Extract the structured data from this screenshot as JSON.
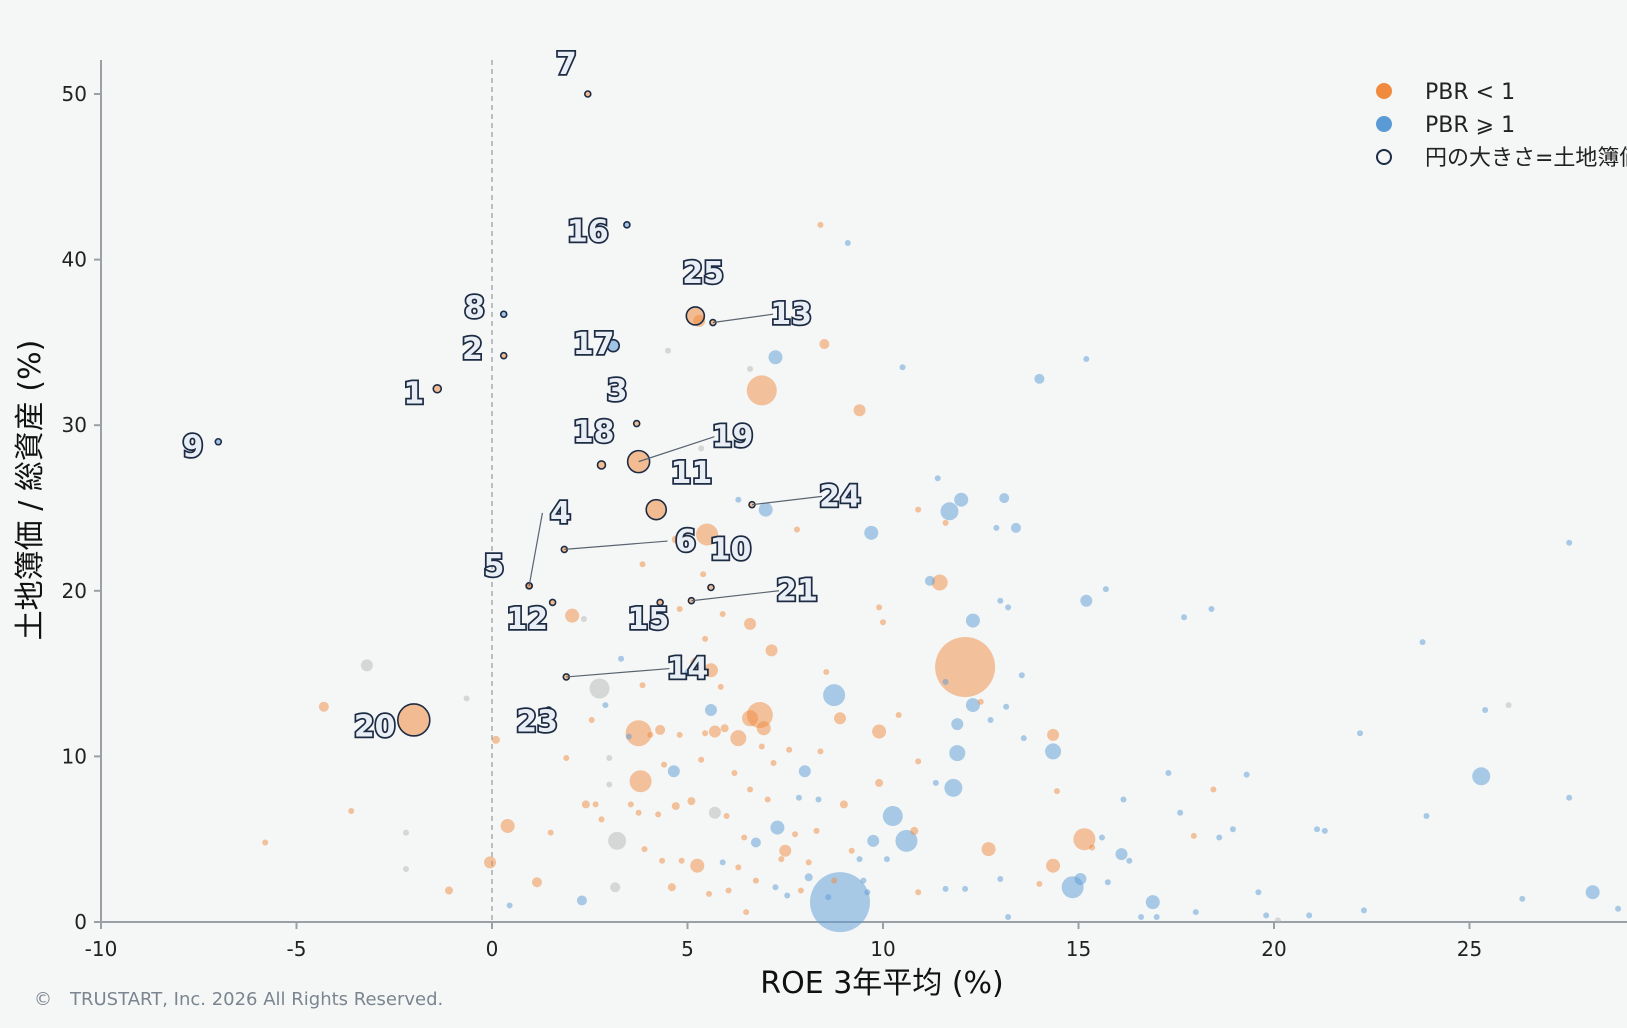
{
  "chart_data": {
    "type": "scatter",
    "title": "",
    "xlabel": "ROE 3年平均 (%)",
    "ylabel": "土地簿価 / 総資産 (%)",
    "xlim": [
      -10,
      29
    ],
    "ylim": [
      0,
      52
    ],
    "xticks": [
      -10,
      -5,
      0,
      5,
      10,
      15,
      20,
      25
    ],
    "yticks": [
      0,
      10,
      20,
      30,
      40,
      50
    ],
    "reference_line": {
      "x": 0,
      "style": "dashed"
    },
    "legend_position": "top-right",
    "colors": {
      "pbr_lt_1": "#f08a3e",
      "pbr_ge_1": "#5b9bd5",
      "outline": "#1d2c45",
      "grey": "#b5b5b5"
    },
    "legend": [
      {
        "label": "PBR < 1",
        "marker": "filled",
        "color": "#f08a3e"
      },
      {
        "label": "PBR ⩾ 1",
        "marker": "filled",
        "color": "#5b9bd5"
      },
      {
        "label": "円の大きさ=土地簿価",
        "marker": "hollow",
        "color": "#1d2c45"
      }
    ],
    "highlighted": [
      {
        "label": "1",
        "x": -1.4,
        "y": 32.2,
        "size": 4,
        "group": "orange",
        "label_dx": -0.6,
        "label_dy": -0.9
      },
      {
        "label": "2",
        "x": 0.3,
        "y": 34.2,
        "size": 3,
        "group": "orange",
        "label_dx": -0.8,
        "label_dy": -0.2
      },
      {
        "label": "3",
        "x": 3.7,
        "y": 30.1,
        "size": 3,
        "group": "orange",
        "label_dx": -0.5,
        "label_dy": 1.4
      },
      {
        "label": "4",
        "x": 0.95,
        "y": 20.3,
        "size": 3,
        "group": "orange",
        "label_dx": 0.8,
        "label_dy": 3.8
      },
      {
        "label": "5",
        "x": 0.95,
        "y": 20.3,
        "size": 3,
        "group": "orange",
        "label_dx": -0.9,
        "label_dy": 0.6
      },
      {
        "label": "6",
        "x": 1.85,
        "y": 22.5,
        "size": 3,
        "group": "orange",
        "label_dx": 3.1,
        "label_dy": -0.1
      },
      {
        "label": "7",
        "x": 2.45,
        "y": 50.0,
        "size": 3,
        "group": "orange",
        "label_dx": -0.55,
        "label_dy": 1.2
      },
      {
        "label": "8",
        "x": 0.3,
        "y": 36.7,
        "size": 3,
        "group": "blue",
        "label_dx": -0.75,
        "label_dy": -0.2
      },
      {
        "label": "9",
        "x": -7.0,
        "y": 29.0,
        "size": 3,
        "group": "blue",
        "label_dx": -0.65,
        "label_dy": -0.9
      },
      {
        "label": "10",
        "x": 5.6,
        "y": 20.2,
        "size": 3,
        "group": "orange",
        "label_dx": 0.5,
        "label_dy": 1.7
      },
      {
        "label": "11",
        "x": 4.2,
        "y": 24.9,
        "size": 10,
        "group": "orange",
        "label_dx": 0.9,
        "label_dy": 1.6
      },
      {
        "label": "12",
        "x": 1.55,
        "y": 19.3,
        "size": 3,
        "group": "orange",
        "label_dx": -0.65,
        "label_dy": -1.6
      },
      {
        "label": "13",
        "x": 5.65,
        "y": 36.2,
        "size": 3,
        "group": "orange",
        "label_dx": 2.0,
        "label_dy": -0.1
      },
      {
        "label": "14",
        "x": 1.9,
        "y": 14.8,
        "size": 3,
        "group": "orange",
        "label_dx": 3.1,
        "label_dy": -0.1
      },
      {
        "label": "15",
        "x": 4.3,
        "y": 19.3,
        "size": 3,
        "group": "orange",
        "label_dx": -0.3,
        "label_dy": -1.6
      },
      {
        "label": "16",
        "x": 3.45,
        "y": 42.1,
        "size": 3,
        "group": "blue",
        "label_dx": -1.0,
        "label_dy": -1.0
      },
      {
        "label": "17",
        "x": 3.1,
        "y": 34.8,
        "size": 6,
        "group": "blue",
        "label_dx": -0.5,
        "label_dy": -0.5
      },
      {
        "label": "18",
        "x": 2.8,
        "y": 27.6,
        "size": 4,
        "group": "orange",
        "label_dx": -0.2,
        "label_dy": 1.4
      },
      {
        "label": "19",
        "x": 3.75,
        "y": 27.8,
        "size": 11,
        "group": "orange",
        "label_dx": 2.4,
        "label_dy": 0.9
      },
      {
        "label": "20",
        "x": -2.0,
        "y": 12.2,
        "size": 16,
        "group": "orange",
        "label_dx": -1.0,
        "label_dy": -1.0
      },
      {
        "label": "21",
        "x": 5.1,
        "y": 19.4,
        "size": 3,
        "group": "orange",
        "label_dx": 2.7,
        "label_dy": 0.0
      },
      {
        "label": "23",
        "x": 1.45,
        "y": 12.8,
        "size": 3,
        "group": "grey",
        "label_dx": -0.3,
        "label_dy": -1.3
      },
      {
        "label": "24",
        "x": 6.65,
        "y": 25.2,
        "size": 3,
        "group": "orange",
        "label_dx": 2.25,
        "label_dy": -0.1
      },
      {
        "label": "25",
        "x": 5.2,
        "y": 36.6,
        "size": 9,
        "group": "orange",
        "label_dx": 0.2,
        "label_dy": 2.0
      }
    ],
    "background_points": [
      [
        8.4,
        42.1,
        3,
        "o"
      ],
      [
        9.1,
        41.0,
        3,
        "b"
      ],
      [
        5.3,
        36.3,
        6,
        "o"
      ],
      [
        8.5,
        34.9,
        5,
        "o"
      ],
      [
        7.25,
        34.1,
        7,
        "b"
      ],
      [
        4.5,
        34.5,
        3,
        "g"
      ],
      [
        6.6,
        33.4,
        3,
        "g"
      ],
      [
        10.5,
        33.5,
        3,
        "b"
      ],
      [
        14.0,
        32.8,
        5,
        "b"
      ],
      [
        15.2,
        34.0,
        3,
        "b"
      ],
      [
        6.9,
        32.1,
        15,
        "o"
      ],
      [
        9.4,
        30.9,
        6,
        "o"
      ],
      [
        5.35,
        28.6,
        3,
        "g"
      ],
      [
        11.4,
        26.8,
        3,
        "b"
      ],
      [
        11.7,
        24.8,
        9,
        "b"
      ],
      [
        12.0,
        25.5,
        7,
        "b"
      ],
      [
        10.9,
        24.9,
        3,
        "o"
      ],
      [
        7.0,
        24.9,
        7,
        "b"
      ],
      [
        6.3,
        25.5,
        3,
        "b"
      ],
      [
        13.1,
        25.6,
        5,
        "b"
      ],
      [
        13.4,
        23.8,
        5,
        "b"
      ],
      [
        9.7,
        23.5,
        7,
        "b"
      ],
      [
        5.5,
        23.4,
        11,
        "o"
      ],
      [
        7.8,
        23.7,
        3,
        "o"
      ],
      [
        4.7,
        23.1,
        4,
        "o"
      ],
      [
        11.6,
        24.1,
        3,
        "o"
      ],
      [
        12.9,
        23.8,
        3,
        "b"
      ],
      [
        11.45,
        20.5,
        8,
        "o"
      ],
      [
        11.2,
        20.6,
        5,
        "b"
      ],
      [
        13.0,
        19.4,
        3,
        "b"
      ],
      [
        13.2,
        19.0,
        3,
        "b"
      ],
      [
        15.2,
        19.4,
        6,
        "b"
      ],
      [
        15.7,
        20.1,
        3,
        "b"
      ],
      [
        17.7,
        18.4,
        3,
        "b"
      ],
      [
        18.4,
        18.9,
        3,
        "b"
      ],
      [
        12.3,
        18.2,
        7,
        "b"
      ],
      [
        9.9,
        19.0,
        3,
        "o"
      ],
      [
        10.0,
        18.1,
        3,
        "o"
      ],
      [
        6.6,
        18.0,
        6,
        "o"
      ],
      [
        4.8,
        18.9,
        3,
        "o"
      ],
      [
        5.9,
        18.6,
        3,
        "o"
      ],
      [
        2.05,
        18.5,
        7,
        "o"
      ],
      [
        2.35,
        18.3,
        3,
        "g"
      ],
      [
        3.85,
        21.6,
        3,
        "o"
      ],
      [
        5.4,
        21.0,
        3,
        "o"
      ],
      [
        12.1,
        15.4,
        30,
        "o"
      ],
      [
        8.75,
        13.7,
        11,
        "b"
      ],
      [
        7.15,
        16.4,
        6,
        "o"
      ],
      [
        6.85,
        12.5,
        13,
        "o"
      ],
      [
        6.6,
        12.3,
        8,
        "o"
      ],
      [
        6.95,
        11.7,
        7,
        "o"
      ],
      [
        6.3,
        11.1,
        8,
        "o"
      ],
      [
        5.95,
        11.7,
        4,
        "o"
      ],
      [
        5.7,
        11.5,
        6,
        "o"
      ],
      [
        5.45,
        11.4,
        3,
        "o"
      ],
      [
        5.25,
        15.6,
        7,
        "o"
      ],
      [
        5.6,
        15.2,
        7,
        "o"
      ],
      [
        5.0,
        15.1,
        3,
        "b"
      ],
      [
        5.45,
        17.1,
        3,
        "o"
      ],
      [
        3.75,
        11.4,
        13,
        "o"
      ],
      [
        3.8,
        8.5,
        11,
        "o"
      ],
      [
        2.75,
        14.1,
        10,
        "g"
      ],
      [
        3.2,
        4.9,
        9,
        "g"
      ],
      [
        3.15,
        2.1,
        5,
        "g"
      ],
      [
        2.65,
        7.1,
        3,
        "o"
      ],
      [
        4.3,
        11.6,
        5,
        "o"
      ],
      [
        4.8,
        11.3,
        3,
        "o"
      ],
      [
        4.65,
        9.1,
        6,
        "b"
      ],
      [
        5.7,
        6.6,
        6,
        "g"
      ],
      [
        6.75,
        4.8,
        5,
        "b"
      ],
      [
        7.3,
        5.7,
        7,
        "b"
      ],
      [
        7.5,
        4.3,
        6,
        "o"
      ],
      [
        9.2,
        4.3,
        3,
        "o"
      ],
      [
        9.75,
        4.9,
        6,
        "b"
      ],
      [
        10.25,
        6.4,
        10,
        "b"
      ],
      [
        10.6,
        4.9,
        11,
        "b"
      ],
      [
        10.8,
        5.5,
        4,
        "o"
      ],
      [
        11.35,
        8.4,
        3,
        "b"
      ],
      [
        11.8,
        8.1,
        9,
        "b"
      ],
      [
        11.6,
        14.5,
        3,
        "b"
      ],
      [
        12.3,
        13.1,
        7,
        "b"
      ],
      [
        11.9,
        11.95,
        6,
        "b"
      ],
      [
        11.9,
        10.2,
        8,
        "b"
      ],
      [
        12.5,
        13.3,
        3,
        "o"
      ],
      [
        12.75,
        12.2,
        3,
        "b"
      ],
      [
        13.15,
        13.0,
        3,
        "b"
      ],
      [
        13.55,
        14.9,
        3,
        "b"
      ],
      [
        13.6,
        11.1,
        3,
        "b"
      ],
      [
        14.35,
        11.3,
        6,
        "o"
      ],
      [
        14.35,
        10.3,
        8,
        "b"
      ],
      [
        14.45,
        7.9,
        3,
        "o"
      ],
      [
        15.15,
        5.0,
        11,
        "o"
      ],
      [
        15.35,
        4.5,
        3,
        "o"
      ],
      [
        15.6,
        5.1,
        3,
        "b"
      ],
      [
        16.1,
        4.1,
        6,
        "b"
      ],
      [
        16.15,
        7.4,
        3,
        "b"
      ],
      [
        16.3,
        3.7,
        3,
        "b"
      ],
      [
        14.85,
        2.1,
        11,
        "b"
      ],
      [
        15.05,
        2.6,
        6,
        "b"
      ],
      [
        15.75,
        2.4,
        3,
        "b"
      ],
      [
        14.35,
        3.4,
        7,
        "o"
      ],
      [
        14.0,
        2.3,
        3,
        "o"
      ],
      [
        16.9,
        1.2,
        7,
        "b"
      ],
      [
        17.3,
        9.0,
        3,
        "b"
      ],
      [
        17.6,
        6.6,
        3,
        "b"
      ],
      [
        17.95,
        5.2,
        3,
        "o"
      ],
      [
        18.0,
        0.6,
        3,
        "b"
      ],
      [
        18.45,
        8.0,
        3,
        "o"
      ],
      [
        18.6,
        5.1,
        3,
        "b"
      ],
      [
        18.95,
        5.6,
        3,
        "b"
      ],
      [
        19.3,
        8.9,
        3,
        "b"
      ],
      [
        19.6,
        1.8,
        3,
        "b"
      ],
      [
        19.8,
        0.4,
        3,
        "b"
      ],
      [
        20.1,
        0.1,
        3,
        "g"
      ],
      [
        20.9,
        0.4,
        3,
        "b"
      ],
      [
        21.1,
        5.6,
        3,
        "b"
      ],
      [
        21.3,
        5.5,
        3,
        "b"
      ],
      [
        22.2,
        11.4,
        3,
        "b"
      ],
      [
        22.3,
        0.7,
        3,
        "b"
      ],
      [
        23.8,
        16.9,
        3,
        "b"
      ],
      [
        23.9,
        6.4,
        3,
        "b"
      ],
      [
        25.3,
        8.8,
        9,
        "b"
      ],
      [
        25.4,
        12.8,
        3,
        "b"
      ],
      [
        26.0,
        13.1,
        3,
        "g"
      ],
      [
        26.35,
        1.4,
        3,
        "b"
      ],
      [
        27.55,
        22.9,
        3,
        "b"
      ],
      [
        27.55,
        7.5,
        3,
        "b"
      ],
      [
        28.15,
        1.8,
        7,
        "b"
      ],
      [
        28.8,
        0.8,
        3,
        "b"
      ],
      [
        8.9,
        1.2,
        30,
        "b"
      ],
      [
        8.75,
        2.5,
        3,
        "o"
      ],
      [
        9.5,
        2.5,
        3,
        "b"
      ],
      [
        9.0,
        7.1,
        4,
        "o"
      ],
      [
        9.9,
        8.4,
        4,
        "o"
      ],
      [
        9.9,
        11.5,
        7,
        "o"
      ],
      [
        8.9,
        12.3,
        6,
        "o"
      ],
      [
        10.4,
        12.5,
        3,
        "o"
      ],
      [
        10.9,
        9.7,
        3,
        "o"
      ],
      [
        10.1,
        3.8,
        3,
        "b"
      ],
      [
        10.9,
        1.8,
        3,
        "o"
      ],
      [
        11.6,
        2.0,
        3,
        "b"
      ],
      [
        12.1,
        2.0,
        3,
        "b"
      ],
      [
        12.7,
        4.4,
        7,
        "o"
      ],
      [
        13.0,
        2.6,
        3,
        "b"
      ],
      [
        13.2,
        0.3,
        3,
        "b"
      ],
      [
        16.6,
        0.3,
        3,
        "b"
      ],
      [
        17.0,
        0.3,
        3,
        "b"
      ],
      [
        -3.2,
        15.5,
        6,
        "g"
      ],
      [
        -4.3,
        13.0,
        5,
        "o"
      ],
      [
        -3.6,
        6.7,
        3,
        "o"
      ],
      [
        -5.8,
        4.8,
        3,
        "o"
      ],
      [
        -2.2,
        5.4,
        3,
        "g"
      ],
      [
        -2.2,
        3.2,
        3,
        "g"
      ],
      [
        -1.1,
        1.9,
        4,
        "o"
      ],
      [
        -0.65,
        13.5,
        3,
        "g"
      ],
      [
        0.1,
        11.0,
        4,
        "o"
      ],
      [
        0.4,
        5.8,
        7,
        "o"
      ],
      [
        -0.05,
        3.6,
        6,
        "o"
      ],
      [
        0.45,
        1.0,
        3,
        "b"
      ],
      [
        1.15,
        2.4,
        5,
        "o"
      ],
      [
        1.5,
        5.4,
        3,
        "o"
      ],
      [
        1.9,
        9.9,
        3,
        "o"
      ],
      [
        2.3,
        1.3,
        5,
        "b"
      ],
      [
        2.4,
        7.1,
        4,
        "o"
      ],
      [
        2.55,
        12.2,
        3,
        "o"
      ],
      [
        2.8,
        6.2,
        3,
        "o"
      ],
      [
        2.9,
        13.1,
        3,
        "b"
      ],
      [
        3.0,
        9.9,
        3,
        "g"
      ],
      [
        3.0,
        8.3,
        3,
        "g"
      ],
      [
        3.3,
        15.9,
        3,
        "b"
      ],
      [
        3.5,
        11.2,
        3,
        "b"
      ],
      [
        3.55,
        7.1,
        3,
        "o"
      ],
      [
        3.75,
        6.6,
        3,
        "o"
      ],
      [
        3.85,
        14.3,
        3,
        "o"
      ],
      [
        3.9,
        4.4,
        3,
        "o"
      ],
      [
        4.05,
        11.3,
        3,
        "o"
      ],
      [
        4.25,
        6.5,
        3,
        "o"
      ],
      [
        4.35,
        3.7,
        3,
        "o"
      ],
      [
        4.4,
        9.5,
        3,
        "o"
      ],
      [
        4.6,
        2.1,
        4,
        "o"
      ],
      [
        4.7,
        7.0,
        4,
        "o"
      ],
      [
        4.85,
        3.7,
        3,
        "o"
      ],
      [
        5.1,
        7.3,
        4,
        "o"
      ],
      [
        5.35,
        9.8,
        3,
        "o"
      ],
      [
        5.6,
        12.8,
        6,
        "b"
      ],
      [
        5.85,
        14.2,
        3,
        "o"
      ],
      [
        6.0,
        6.4,
        3,
        "o"
      ],
      [
        6.2,
        9.0,
        3,
        "o"
      ],
      [
        6.3,
        3.3,
        3,
        "o"
      ],
      [
        6.45,
        5.1,
        3,
        "o"
      ],
      [
        6.6,
        8.0,
        3,
        "o"
      ],
      [
        6.75,
        2.5,
        3,
        "o"
      ],
      [
        6.9,
        10.6,
        3,
        "o"
      ],
      [
        7.05,
        7.4,
        3,
        "o"
      ],
      [
        7.2,
        9.6,
        3,
        "o"
      ],
      [
        7.4,
        3.8,
        3,
        "o"
      ],
      [
        7.55,
        1.6,
        3,
        "b"
      ],
      [
        7.6,
        10.4,
        3,
        "o"
      ],
      [
        7.75,
        5.3,
        3,
        "o"
      ],
      [
        7.85,
        7.5,
        3,
        "b"
      ],
      [
        8.0,
        9.1,
        6,
        "b"
      ],
      [
        8.1,
        3.6,
        3,
        "o"
      ],
      [
        8.3,
        5.5,
        3,
        "o"
      ],
      [
        8.4,
        10.3,
        3,
        "o"
      ],
      [
        8.55,
        15.1,
        3,
        "o"
      ],
      [
        8.6,
        1.5,
        3,
        "b"
      ],
      [
        8.35,
        7.4,
        3,
        "b"
      ],
      [
        5.25,
        3.4,
        7,
        "o"
      ],
      [
        5.55,
        1.7,
        3,
        "o"
      ],
      [
        5.9,
        3.6,
        3,
        "b"
      ],
      [
        6.05,
        1.9,
        3,
        "o"
      ],
      [
        6.5,
        0.6,
        3,
        "o"
      ],
      [
        7.25,
        2.1,
        3,
        "b"
      ],
      [
        7.9,
        1.9,
        3,
        "o"
      ],
      [
        8.1,
        2.7,
        4,
        "b"
      ],
      [
        9.4,
        3.8,
        3,
        "b"
      ],
      [
        9.6,
        1.8,
        3,
        "b"
      ]
    ]
  },
  "copyright": "©　TRUSTART, Inc. 2026 All Rights Reserved."
}
